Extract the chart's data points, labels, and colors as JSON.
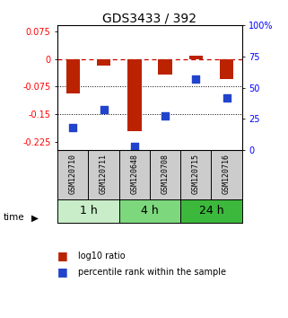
{
  "title": "GDS3433 / 392",
  "samples": [
    "GSM120710",
    "GSM120711",
    "GSM120648",
    "GSM120708",
    "GSM120715",
    "GSM120716"
  ],
  "groups": [
    {
      "label": "1 h",
      "indices": [
        0,
        1
      ]
    },
    {
      "label": "4 h",
      "indices": [
        2,
        3
      ]
    },
    {
      "label": "24 h",
      "indices": [
        4,
        5
      ]
    }
  ],
  "group_colors": [
    "#c8edc8",
    "#7dd87d",
    "#3cb83c"
  ],
  "log10_ratio": [
    -0.093,
    -0.018,
    -0.195,
    -0.043,
    0.008,
    -0.055
  ],
  "percentile_rank": [
    18,
    32,
    3,
    27,
    57,
    42
  ],
  "ylim_left": [
    -0.245,
    0.09
  ],
  "ylim_right": [
    0,
    100
  ],
  "yticks_left": [
    0.075,
    0.0,
    -0.075,
    -0.15,
    -0.225
  ],
  "yticks_right": [
    100,
    75,
    50,
    25,
    0
  ],
  "bar_color": "#bb2200",
  "dot_color": "#2244cc",
  "bar_width": 0.45,
  "dot_size": 40,
  "title_fontsize": 10,
  "tick_fontsize": 7,
  "sample_fontsize": 6,
  "group_fontsize": 9,
  "legend_fontsize": 7,
  "sample_bg": "#cccccc"
}
